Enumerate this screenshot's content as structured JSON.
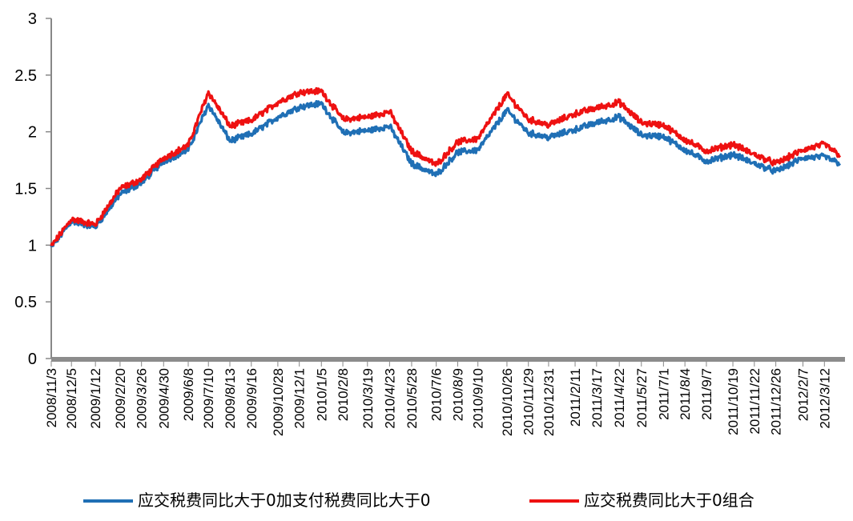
{
  "chart_data": {
    "type": "line",
    "title": "",
    "xlabel": "",
    "ylabel": "",
    "ylim": [
      0,
      3
    ],
    "y_ticks": [
      "0",
      "0.5",
      "1",
      "1.5",
      "2",
      "2.5",
      "3"
    ],
    "grid": false,
    "legend_position": "bottom",
    "x_tick_labels": [
      "2008/11/3",
      "2008/12/5",
      "2009/1/12",
      "2009/2/20",
      "2009/3/26",
      "2009/4/30",
      "2009/6/8",
      "2009/7/10",
      "2009/8/13",
      "2009/9/16",
      "2009/10/28",
      "2009/12/1",
      "2010/1/5",
      "2010/2/8",
      "2010/3/19",
      "2010/4/23",
      "2010/5/28",
      "2010/7/6",
      "2010/8/9",
      "2010/9/10",
      "2010/10/26",
      "2010/11/29",
      "2010/12/31",
      "2011/2/11",
      "2011/3/17",
      "2011/4/22",
      "2011/5/27",
      "2011/7/1",
      "2011/8/4",
      "2011/9/7",
      "2011/10/19",
      "2011/11/22",
      "2011/12/26",
      "2012/2/7",
      "2012/3/12"
    ],
    "x": [
      "2008/11/3",
      "2008/12/5",
      "2009/1/12",
      "2009/2/20",
      "2009/3/26",
      "2009/4/30",
      "2009/6/8",
      "2009/7/10",
      "2009/8/13",
      "2009/9/16",
      "2009/10/28",
      "2009/12/1",
      "2010/1/5",
      "2010/2/8",
      "2010/3/19",
      "2010/4/23",
      "2010/5/28",
      "2010/7/6",
      "2010/8/9",
      "2010/9/10",
      "2010/10/26",
      "2010/11/29",
      "2010/12/31",
      "2011/2/11",
      "2011/3/17",
      "2011/4/22",
      "2011/5/27",
      "2011/7/1",
      "2011/8/4",
      "2011/9/7",
      "2011/10/19",
      "2011/11/22",
      "2011/12/26",
      "2012/2/7",
      "2012/3/12",
      "2012/4/6"
    ],
    "series": [
      {
        "name": "应交税费同比大于0加支付税费同比大于0",
        "color": "#1f6fb5",
        "values": [
          0.98,
          1.21,
          1.16,
          1.45,
          1.55,
          1.74,
          1.84,
          2.24,
          1.92,
          1.98,
          2.13,
          2.22,
          2.25,
          1.99,
          2.01,
          2.05,
          1.72,
          1.62,
          1.82,
          1.84,
          2.19,
          1.99,
          1.95,
          2.02,
          2.08,
          2.13,
          1.97,
          1.96,
          1.84,
          1.74,
          1.8,
          1.72,
          1.65,
          1.77,
          1.78,
          1.72
        ]
      },
      {
        "name": "应交税费同比大于0组合",
        "color": "#ee1111",
        "values": [
          0.99,
          1.23,
          1.18,
          1.5,
          1.58,
          1.77,
          1.88,
          2.35,
          2.05,
          2.1,
          2.26,
          2.35,
          2.36,
          2.11,
          2.13,
          2.18,
          1.83,
          1.71,
          1.91,
          1.94,
          2.33,
          2.11,
          2.06,
          2.16,
          2.21,
          2.26,
          2.08,
          2.06,
          1.93,
          1.83,
          1.89,
          1.8,
          1.72,
          1.84,
          1.89,
          1.79
        ]
      }
    ]
  }
}
